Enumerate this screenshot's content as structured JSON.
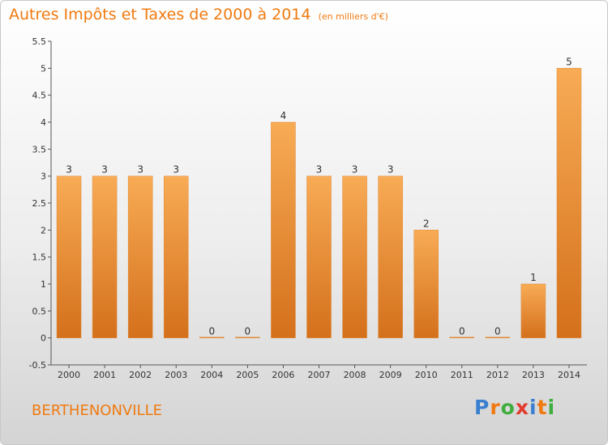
{
  "header": {
    "title": "Autres Impôts et Taxes de 2000 à 2014",
    "unit": "(en milliers d'€)"
  },
  "footer": {
    "commune": "BERTHENONVILLE",
    "logo_letters": [
      "P",
      "r",
      "o",
      "x",
      "i",
      "t",
      "i"
    ],
    "logo_colors": [
      "#3a7fd0",
      "#f07a10",
      "#3fae3f",
      "#e23b2f",
      "#3a7fd0",
      "#f07a10",
      "#3fae3f"
    ]
  },
  "colors": {
    "accent": "#f07a10",
    "bar_top": "#f8ab55",
    "bar_bottom": "#d4701c"
  },
  "chart_data": {
    "type": "bar",
    "title": "Autres Impôts et Taxes de 2000 à 2014",
    "subtitle": "(en milliers d'€)",
    "categories": [
      "2000",
      "2001",
      "2002",
      "2003",
      "2004",
      "2005",
      "2006",
      "2007",
      "2008",
      "2009",
      "2010",
      "2011",
      "2012",
      "2013",
      "2014"
    ],
    "values": [
      3,
      3,
      3,
      3,
      0,
      0,
      4,
      3,
      3,
      3,
      2,
      0,
      0,
      1,
      5
    ],
    "data_labels": [
      "3",
      "3",
      "3",
      "3",
      "0",
      "0",
      "4",
      "3",
      "3",
      "3",
      "2",
      "0",
      "0",
      "1",
      "5"
    ],
    "ylim": [
      -0.5,
      5.5
    ],
    "yticks": [
      "-0.5",
      "0",
      "0.5",
      "1",
      "1.5",
      "2",
      "2.5",
      "3",
      "3.5",
      "4",
      "4.5",
      "5",
      "5.5"
    ],
    "grid": false,
    "legend": "none"
  }
}
